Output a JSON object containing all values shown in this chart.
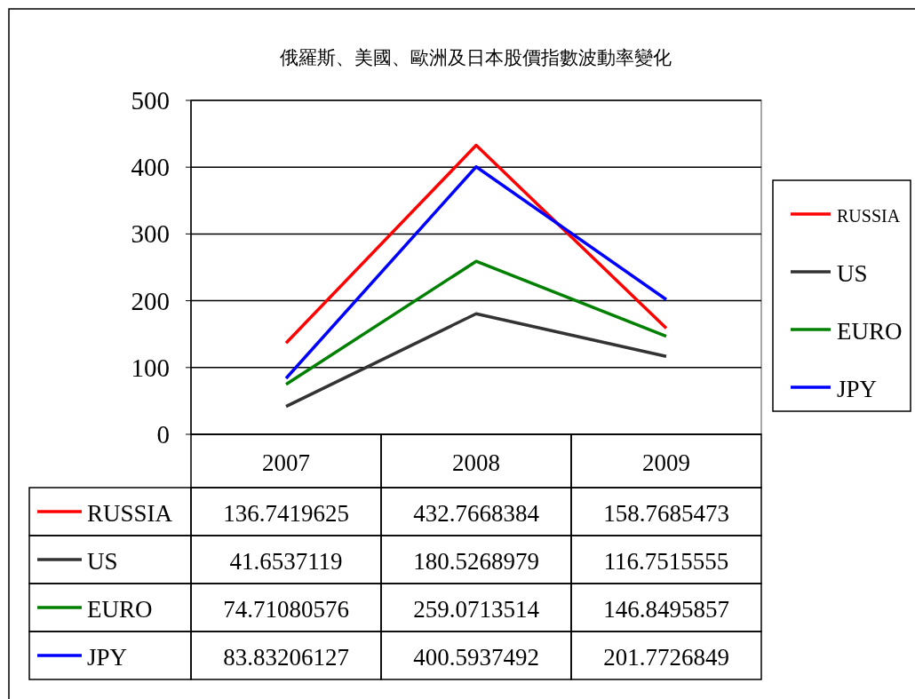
{
  "chart_data": {
    "type": "line",
    "title": "俄羅斯、美國、歐洲及日本股價指數波動率變化",
    "categories": [
      "2007",
      "2008",
      "2009"
    ],
    "series": [
      {
        "name": "RUSSIA",
        "color": "#ff0000",
        "values": [
          136.7419625,
          432.7668384,
          158.7685473
        ]
      },
      {
        "name": "US",
        "color": "#333333",
        "values": [
          41.6537119,
          180.5268979,
          116.7515555
        ]
      },
      {
        "name": "EURO",
        "color": "#008000",
        "values": [
          74.71080576,
          259.0713514,
          146.8495857
        ]
      },
      {
        "name": "JPY",
        "color": "#0000ff",
        "values": [
          83.83206127,
          400.5937492,
          201.7726849
        ]
      }
    ],
    "ylim": [
      0,
      500
    ],
    "yticks": [
      0,
      100,
      200,
      300,
      400,
      500
    ],
    "grid": "y",
    "legend": "right",
    "data_labels": true
  }
}
